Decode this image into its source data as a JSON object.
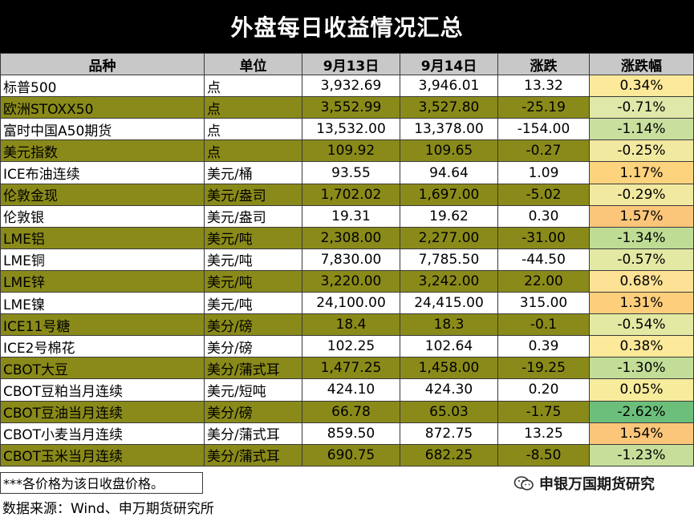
{
  "title": "外盘每日收益情况汇总",
  "headers": [
    "品种",
    "单位",
    "9月13日",
    "9月14日",
    "涨跌",
    "涨跌幅"
  ],
  "rows": [
    {
      "name": "标普500",
      "unit": "点",
      "d13": "3,932.69",
      "d14": "3,946.01",
      "chg": "13.32",
      "pct": "0.34%",
      "color": "#fde99a"
    },
    {
      "name": "欧洲STOXX50",
      "unit": "点",
      "d13": "3,552.99",
      "d14": "3,527.80",
      "chg": "-25.19",
      "pct": "-0.71%",
      "color": "#dfe8a8"
    },
    {
      "name": "富时中国A50期货",
      "unit": "点",
      "d13": "13,532.00",
      "d14": "13,378.00",
      "chg": "-154.00",
      "pct": "-1.14%",
      "color": "#c9df9e"
    },
    {
      "name": "美元指数",
      "unit": "点",
      "d13": "109.92",
      "d14": "109.65",
      "chg": "-0.27",
      "pct": "-0.25%",
      "color": "#f2e9a0"
    },
    {
      "name": "ICE布油连续",
      "unit": "美元/桶",
      "d13": "93.55",
      "d14": "94.64",
      "chg": "1.09",
      "pct": "1.17%",
      "color": "#fdd37d"
    },
    {
      "name": "伦敦金现",
      "unit": "美元/盎司",
      "d13": "1,702.02",
      "d14": "1,697.00",
      "chg": "-5.02",
      "pct": "-0.29%",
      "color": "#f2e9a0"
    },
    {
      "name": "伦敦银",
      "unit": "美元/盎司",
      "d13": "19.31",
      "d14": "19.62",
      "chg": "0.30",
      "pct": "1.57%",
      "color": "#fcc67a"
    },
    {
      "name": "LME铝",
      "unit": "美元/吨",
      "d13": "2,308.00",
      "d14": "2,277.00",
      "chg": "-31.00",
      "pct": "-1.34%",
      "color": "#bfdc95"
    },
    {
      "name": "LME铜",
      "unit": "美元/吨",
      "d13": "7,830.00",
      "d14": "7,785.50",
      "chg": "-44.50",
      "pct": "-0.57%",
      "color": "#e3e9a3"
    },
    {
      "name": "LME锌",
      "unit": "美元/吨",
      "d13": "3,220.00",
      "d14": "3,242.00",
      "chg": "22.00",
      "pct": "0.68%",
      "color": "#fde194"
    },
    {
      "name": "LME镍",
      "unit": "美元/吨",
      "d13": "24,100.00",
      "d14": "24,415.00",
      "chg": "315.00",
      "pct": "1.31%",
      "color": "#fdce7b"
    },
    {
      "name": "ICE11号糖",
      "unit": "美分/磅",
      "d13": "18.4",
      "d14": "18.3",
      "chg": "-0.1",
      "pct": "-0.54%",
      "color": "#e3e9a3"
    },
    {
      "name": "ICE2号棉花",
      "unit": "美分/磅",
      "d13": "102.25",
      "d14": "102.64",
      "chg": "0.39",
      "pct": "0.38%",
      "color": "#fde99a"
    },
    {
      "name": "CBOT大豆",
      "unit": "美分/蒲式耳",
      "d13": "1,477.25",
      "d14": "1,458.00",
      "chg": "-19.25",
      "pct": "-1.30%",
      "color": "#c2dd97"
    },
    {
      "name": "CBOT豆粕当月连续",
      "unit": "美元/短吨",
      "d13": "424.10",
      "d14": "424.30",
      "chg": "0.20",
      "pct": "0.05%",
      "color": "#f7eb9c"
    },
    {
      "name": "CBOT豆油当月连续",
      "unit": "美分/磅",
      "d13": "66.78",
      "d14": "65.03",
      "chg": "-1.75",
      "pct": "-2.62%",
      "color": "#6cbf7b"
    },
    {
      "name": "CBOT小麦当月连续",
      "unit": "美分/蒲式耳",
      "d13": "859.50",
      "d14": "872.75",
      "chg": "13.25",
      "pct": "1.54%",
      "color": "#fcc67a"
    },
    {
      "name": "CBOT玉米当月连续",
      "unit": "美分/蒲式耳",
      "d13": "690.75",
      "d14": "682.25",
      "chg": "-8.50",
      "pct": "-1.23%",
      "color": "#c6de9a"
    }
  ],
  "note": "***各价格为该日收盘价格。",
  "brand": "申银万国期货研究",
  "source": "数据来源：Wind、申万期货研究所"
}
